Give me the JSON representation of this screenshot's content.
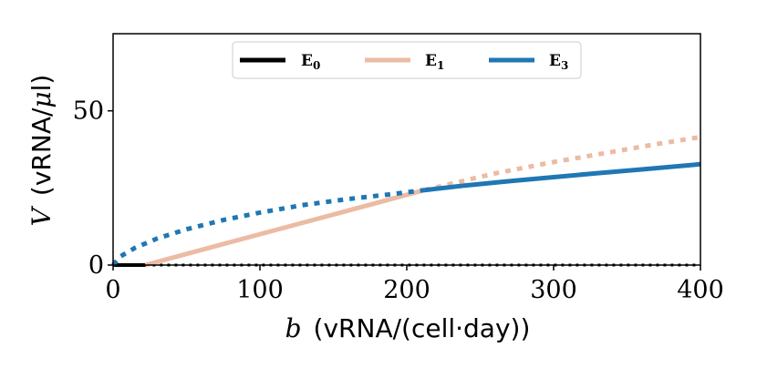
{
  "chart_data": {
    "type": "line",
    "xlabel": {
      "var": "b",
      "unit": "(vRNA/(cell·day))"
    },
    "ylabel": {
      "var": "V",
      "unit": "(vRNA/",
      "mu": "μ",
      "unit_end": "l)"
    },
    "xlim": [
      0,
      400
    ],
    "ylim": [
      0,
      75
    ],
    "xticks": [
      0,
      100,
      200,
      300,
      400
    ],
    "yticks": [
      0,
      50
    ],
    "legend": {
      "placement": "top-center",
      "entries": [
        {
          "label": "E",
          "sub": "0",
          "color": "#000000"
        },
        {
          "label": "E",
          "sub": "1",
          "color": "#ebbba3"
        },
        {
          "label": "E",
          "sub": "3",
          "color": "#1f77b4"
        }
      ]
    },
    "series": [
      {
        "name": "E0 stable",
        "color": "#000000",
        "style": "solid",
        "x": [
          0,
          22
        ],
        "y": [
          0,
          0
        ]
      },
      {
        "name": "E0 unstable",
        "color": "#000000",
        "style": "dotted",
        "x": [
          22,
          400
        ],
        "y": [
          0,
          0
        ]
      },
      {
        "name": "E1 stable",
        "color": "#ebbba3",
        "style": "solid",
        "x": [
          22,
          60,
          100,
          140,
          180,
          212
        ],
        "y": [
          0,
          4.9,
          10.0,
          15.1,
          20.2,
          24.3
        ]
      },
      {
        "name": "E1 unstable",
        "color": "#ebbba3",
        "style": "dotted",
        "x": [
          212,
          260,
          300,
          340,
          370,
          400
        ],
        "y": [
          24.3,
          29.7,
          33.4,
          36.7,
          39.2,
          41.5
        ]
      },
      {
        "name": "E3 unstable",
        "color": "#1f77b4",
        "style": "dotted",
        "x": [
          0,
          5,
          15,
          30,
          50,
          75,
          100,
          130,
          160,
          190,
          212
        ],
        "y": [
          0,
          2.8,
          5.6,
          8.6,
          11.6,
          14.6,
          17.0,
          19.5,
          21.4,
          23.0,
          24.3
        ]
      },
      {
        "name": "E3 stable",
        "color": "#1f77b4",
        "style": "solid",
        "x": [
          212,
          240,
          270,
          300,
          330,
          360,
          400
        ],
        "y": [
          24.3,
          25.8,
          27.2,
          28.5,
          29.8,
          31.0,
          32.7
        ]
      }
    ]
  }
}
